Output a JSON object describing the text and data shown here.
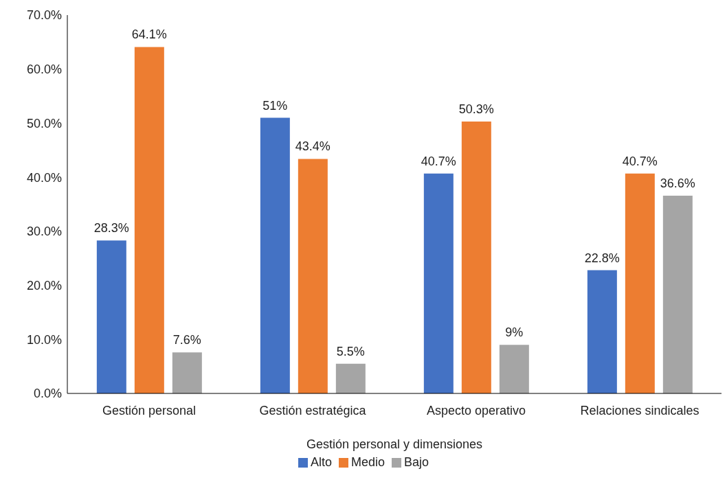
{
  "chart_data": {
    "type": "bar",
    "xlabel": "Gestión personal y dimensiones",
    "categories": [
      "Gestión personal",
      "Gestión estratégica",
      "Aspecto operativo",
      "Relaciones sindicales"
    ],
    "series": [
      {
        "name": "Alto",
        "color": "#4472c4",
        "values": [
          28.3,
          51,
          40.7,
          22.8
        ],
        "value_labels": [
          "28.3%",
          "51%",
          "40.7%",
          "22.8%"
        ]
      },
      {
        "name": "Medio",
        "color": "#ed7d31",
        "values": [
          64.1,
          43.4,
          50.3,
          40.7
        ],
        "value_labels": [
          "64.1%",
          "43.4%",
          "50.3%",
          "40.7%"
        ]
      },
      {
        "name": "Bajo",
        "color": "#a5a5a5",
        "values": [
          7.6,
          5.5,
          9,
          36.6
        ],
        "value_labels": [
          "7.6%",
          "5.5%",
          "9%",
          "36.6%"
        ]
      }
    ],
    "ylim": [
      0,
      70
    ],
    "yticks": [
      {
        "value": 0,
        "label": "0.0%"
      },
      {
        "value": 10,
        "label": "10.0%"
      },
      {
        "value": 20,
        "label": "20.0%"
      },
      {
        "value": 30,
        "label": "30.0%"
      },
      {
        "value": 40,
        "label": "40.0%"
      },
      {
        "value": 50,
        "label": "50.0%"
      },
      {
        "value": 60,
        "label": "60.0%"
      },
      {
        "value": 70,
        "label": "70.0%"
      }
    ],
    "grid": false,
    "legend": "bottom"
  }
}
